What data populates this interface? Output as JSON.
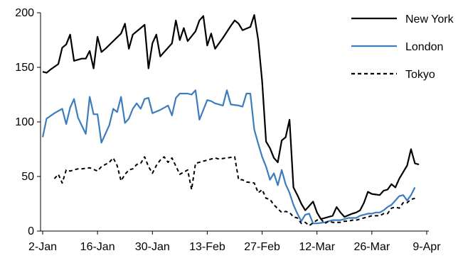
{
  "chart_data": {
    "type": "line",
    "ylim": [
      0,
      200
    ],
    "y_ticks": [
      0,
      50,
      100,
      150,
      200
    ],
    "x_range": [
      0,
      96
    ],
    "x_ticks": [
      {
        "x": 0,
        "label": "2-Jan"
      },
      {
        "x": 14,
        "label": "16-Jan"
      },
      {
        "x": 28,
        "label": "30-Jan"
      },
      {
        "x": 42,
        "label": "13-Feb"
      },
      {
        "x": 56,
        "label": "27-Feb"
      },
      {
        "x": 70,
        "label": "12-Mar"
      },
      {
        "x": 84,
        "label": "26-Mar"
      },
      {
        "x": 98,
        "label": "9-Apr"
      }
    ],
    "grid": false,
    "legend_position": "top-right",
    "series": [
      {
        "name": "New York",
        "color": "#000000",
        "dash": "solid",
        "points": [
          [
            0,
            146
          ],
          [
            1,
            145
          ],
          [
            2,
            148
          ],
          [
            4,
            153
          ],
          [
            5,
            168
          ],
          [
            6,
            171
          ],
          [
            7,
            180
          ],
          [
            8,
            156
          ],
          [
            10,
            158
          ],
          [
            11,
            158
          ],
          [
            12,
            165
          ],
          [
            13,
            149
          ],
          [
            14,
            178
          ],
          [
            15,
            164
          ],
          [
            16,
            167
          ],
          [
            18,
            174
          ],
          [
            20,
            181
          ],
          [
            21,
            190
          ],
          [
            22,
            167
          ],
          [
            23,
            180
          ],
          [
            25,
            186
          ],
          [
            26,
            189
          ],
          [
            27,
            149
          ],
          [
            28,
            172
          ],
          [
            29,
            180
          ],
          [
            30,
            160
          ],
          [
            32,
            168
          ],
          [
            33,
            172
          ],
          [
            34,
            193
          ],
          [
            35,
            175
          ],
          [
            36,
            186
          ],
          [
            37,
            174
          ],
          [
            39,
            183
          ],
          [
            40,
            193
          ],
          [
            41,
            197
          ],
          [
            42,
            170
          ],
          [
            43,
            181
          ],
          [
            44,
            167
          ],
          [
            46,
            177
          ],
          [
            48,
            188
          ],
          [
            49,
            193
          ],
          [
            50,
            190
          ],
          [
            51,
            184
          ],
          [
            53,
            187
          ],
          [
            54,
            198
          ],
          [
            55,
            175
          ],
          [
            56,
            137
          ],
          [
            57,
            82
          ],
          [
            58,
            76
          ],
          [
            59,
            67
          ],
          [
            60,
            63
          ],
          [
            61,
            83
          ],
          [
            62,
            86
          ],
          [
            63,
            102
          ],
          [
            64,
            40
          ],
          [
            65,
            33
          ],
          [
            66,
            25
          ],
          [
            67,
            19
          ],
          [
            68,
            23
          ],
          [
            69,
            27
          ],
          [
            70,
            17
          ],
          [
            71,
            11
          ],
          [
            73,
            13
          ],
          [
            74,
            14
          ],
          [
            75,
            22
          ],
          [
            76,
            17
          ],
          [
            77,
            13
          ],
          [
            79,
            16
          ],
          [
            80,
            17
          ],
          [
            81,
            19
          ],
          [
            82,
            26
          ],
          [
            83,
            36
          ],
          [
            84,
            34
          ],
          [
            86,
            33
          ],
          [
            87,
            37
          ],
          [
            88,
            38
          ],
          [
            89,
            43
          ],
          [
            90,
            40
          ],
          [
            91,
            48
          ],
          [
            92,
            54
          ],
          [
            93,
            60
          ],
          [
            94,
            75
          ],
          [
            95,
            62
          ],
          [
            96,
            61
          ]
        ]
      },
      {
        "name": "London",
        "color": "#3B7DBD",
        "dash": "solid",
        "points": [
          [
            0,
            86
          ],
          [
            1,
            103
          ],
          [
            3,
            108
          ],
          [
            5,
            112
          ],
          [
            6,
            98
          ],
          [
            7,
            113
          ],
          [
            8,
            121
          ],
          [
            9,
            104
          ],
          [
            11,
            89
          ],
          [
            12,
            123
          ],
          [
            13,
            107
          ],
          [
            14,
            107
          ],
          [
            15,
            81
          ],
          [
            17,
            97
          ],
          [
            18,
            112
          ],
          [
            19,
            109
          ],
          [
            20,
            123
          ],
          [
            21,
            99
          ],
          [
            22,
            103
          ],
          [
            23,
            112
          ],
          [
            24,
            117
          ],
          [
            25,
            112
          ],
          [
            26,
            121
          ],
          [
            27,
            122
          ],
          [
            28,
            108
          ],
          [
            30,
            111
          ],
          [
            32,
            115
          ],
          [
            33,
            106
          ],
          [
            34,
            122
          ],
          [
            35,
            126
          ],
          [
            37,
            126
          ],
          [
            38,
            125
          ],
          [
            39,
            129
          ],
          [
            40,
            102
          ],
          [
            42,
            120
          ],
          [
            43,
            119
          ],
          [
            44,
            117
          ],
          [
            46,
            115
          ],
          [
            47,
            129
          ],
          [
            48,
            116
          ],
          [
            50,
            115
          ],
          [
            51,
            114
          ],
          [
            52,
            126
          ],
          [
            53,
            126
          ],
          [
            54,
            93
          ],
          [
            55,
            80
          ],
          [
            56,
            68
          ],
          [
            57,
            59
          ],
          [
            58,
            47
          ],
          [
            59,
            53
          ],
          [
            60,
            42
          ],
          [
            61,
            56
          ],
          [
            62,
            43
          ],
          [
            63,
            35
          ],
          [
            64,
            24
          ],
          [
            65,
            16
          ],
          [
            66,
            9
          ],
          [
            67,
            15
          ],
          [
            68,
            16
          ],
          [
            69,
            7
          ],
          [
            70,
            7
          ],
          [
            72,
            8
          ],
          [
            73,
            9
          ],
          [
            74,
            10
          ],
          [
            76,
            10
          ],
          [
            77,
            11
          ],
          [
            78,
            12
          ],
          [
            79,
            12
          ],
          [
            80,
            12
          ],
          [
            81,
            14
          ],
          [
            82,
            15
          ],
          [
            83,
            16
          ],
          [
            84,
            16
          ],
          [
            85,
            17
          ],
          [
            86,
            17
          ],
          [
            87,
            19
          ],
          [
            88,
            22
          ],
          [
            89,
            24
          ],
          [
            90,
            28
          ],
          [
            91,
            32
          ],
          [
            92,
            33
          ],
          [
            93,
            28
          ],
          [
            94,
            33
          ],
          [
            95,
            40
          ]
        ]
      },
      {
        "name": "Tokyo",
        "color": "#000000",
        "dash": "dashed",
        "points": [
          [
            3,
            48
          ],
          [
            4,
            52
          ],
          [
            5,
            44
          ],
          [
            6,
            56
          ],
          [
            7,
            55
          ],
          [
            9,
            57
          ],
          [
            10,
            57
          ],
          [
            12,
            58
          ],
          [
            14,
            55
          ],
          [
            15,
            59
          ],
          [
            17,
            63
          ],
          [
            18,
            67
          ],
          [
            19,
            60
          ],
          [
            20,
            46
          ],
          [
            21,
            52
          ],
          [
            22,
            56
          ],
          [
            23,
            57
          ],
          [
            24,
            61
          ],
          [
            25,
            62
          ],
          [
            26,
            68
          ],
          [
            27,
            59
          ],
          [
            28,
            53
          ],
          [
            29,
            60
          ],
          [
            30,
            65
          ],
          [
            31,
            68
          ],
          [
            32,
            63
          ],
          [
            33,
            67
          ],
          [
            35,
            52
          ],
          [
            36,
            54
          ],
          [
            37,
            56
          ],
          [
            38,
            38
          ],
          [
            39,
            62
          ],
          [
            41,
            64
          ],
          [
            43,
            66
          ],
          [
            44,
            67
          ],
          [
            45,
            66
          ],
          [
            47,
            67
          ],
          [
            49,
            68
          ],
          [
            50,
            47
          ],
          [
            51,
            47
          ],
          [
            52,
            45
          ],
          [
            54,
            44
          ],
          [
            55,
            35
          ],
          [
            56,
            38
          ],
          [
            57,
            30
          ],
          [
            58,
            29
          ],
          [
            59,
            24
          ],
          [
            61,
            17
          ],
          [
            62,
            18
          ],
          [
            63,
            17
          ],
          [
            64,
            13
          ],
          [
            65,
            12
          ],
          [
            66,
            7
          ],
          [
            67,
            8
          ],
          [
            68,
            5
          ],
          [
            70,
            10
          ],
          [
            71,
            11
          ],
          [
            72,
            7
          ],
          [
            73,
            9
          ],
          [
            74,
            8
          ],
          [
            75,
            8
          ],
          [
            76,
            8
          ],
          [
            77,
            9
          ],
          [
            78,
            9
          ],
          [
            79,
            10
          ],
          [
            80,
            10
          ],
          [
            81,
            11
          ],
          [
            82,
            12
          ],
          [
            83,
            13
          ],
          [
            84,
            14
          ],
          [
            85,
            14
          ],
          [
            86,
            14
          ],
          [
            87,
            16
          ],
          [
            88,
            16
          ],
          [
            89,
            21
          ],
          [
            90,
            22
          ],
          [
            91,
            21
          ],
          [
            92,
            26
          ],
          [
            93,
            26
          ],
          [
            94,
            29
          ],
          [
            95,
            30
          ]
        ]
      }
    ]
  }
}
